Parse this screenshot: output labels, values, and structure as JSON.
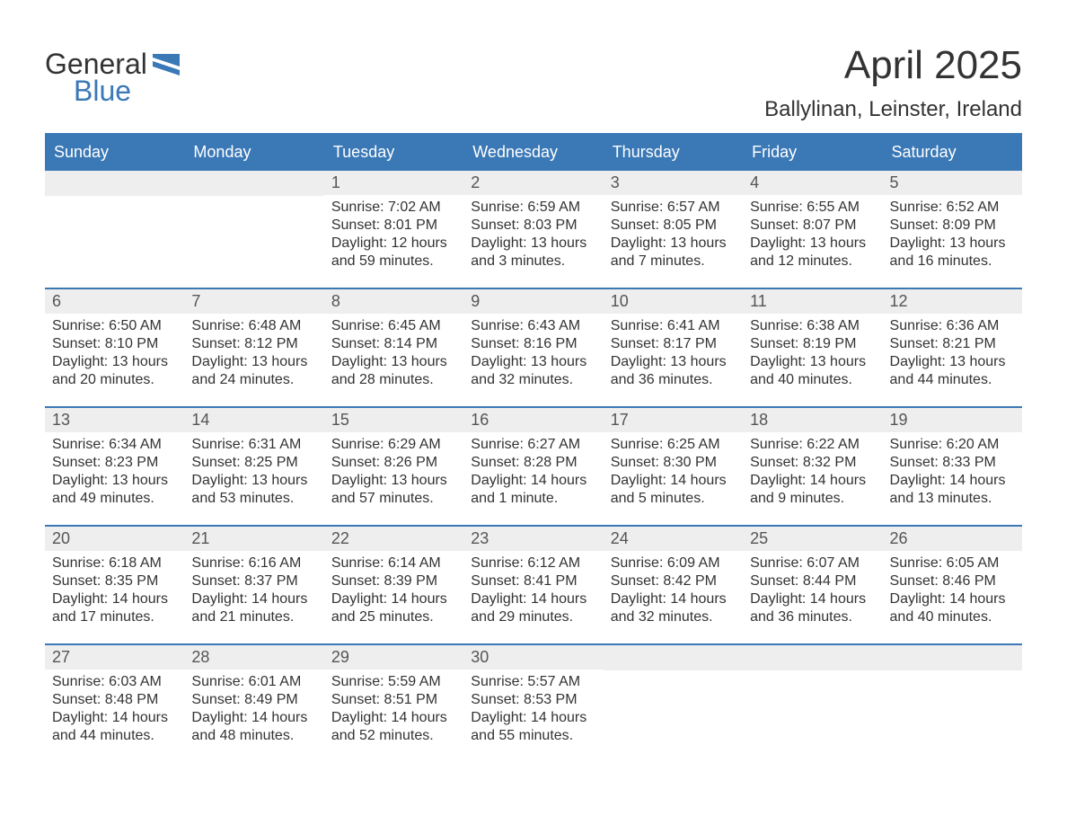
{
  "logo": {
    "word1": "General",
    "word2": "Blue",
    "flag_color": "#3a78b6"
  },
  "title": "April 2025",
  "location": "Ballylinan, Leinster, Ireland",
  "colors": {
    "header_bg": "#3a78b6",
    "header_text": "#ffffff",
    "daynum_bg": "#eeeeee",
    "row_divider": "#3a78b6",
    "body_text": "#333333"
  },
  "weekdays": [
    "Sunday",
    "Monday",
    "Tuesday",
    "Wednesday",
    "Thursday",
    "Friday",
    "Saturday"
  ],
  "weeks": [
    [
      null,
      null,
      {
        "day": 1,
        "sunrise": "7:02 AM",
        "sunset": "8:01 PM",
        "daylight": "12 hours and 59 minutes."
      },
      {
        "day": 2,
        "sunrise": "6:59 AM",
        "sunset": "8:03 PM",
        "daylight": "13 hours and 3 minutes."
      },
      {
        "day": 3,
        "sunrise": "6:57 AM",
        "sunset": "8:05 PM",
        "daylight": "13 hours and 7 minutes."
      },
      {
        "day": 4,
        "sunrise": "6:55 AM",
        "sunset": "8:07 PM",
        "daylight": "13 hours and 12 minutes."
      },
      {
        "day": 5,
        "sunrise": "6:52 AM",
        "sunset": "8:09 PM",
        "daylight": "13 hours and 16 minutes."
      }
    ],
    [
      {
        "day": 6,
        "sunrise": "6:50 AM",
        "sunset": "8:10 PM",
        "daylight": "13 hours and 20 minutes."
      },
      {
        "day": 7,
        "sunrise": "6:48 AM",
        "sunset": "8:12 PM",
        "daylight": "13 hours and 24 minutes."
      },
      {
        "day": 8,
        "sunrise": "6:45 AM",
        "sunset": "8:14 PM",
        "daylight": "13 hours and 28 minutes."
      },
      {
        "day": 9,
        "sunrise": "6:43 AM",
        "sunset": "8:16 PM",
        "daylight": "13 hours and 32 minutes."
      },
      {
        "day": 10,
        "sunrise": "6:41 AM",
        "sunset": "8:17 PM",
        "daylight": "13 hours and 36 minutes."
      },
      {
        "day": 11,
        "sunrise": "6:38 AM",
        "sunset": "8:19 PM",
        "daylight": "13 hours and 40 minutes."
      },
      {
        "day": 12,
        "sunrise": "6:36 AM",
        "sunset": "8:21 PM",
        "daylight": "13 hours and 44 minutes."
      }
    ],
    [
      {
        "day": 13,
        "sunrise": "6:34 AM",
        "sunset": "8:23 PM",
        "daylight": "13 hours and 49 minutes."
      },
      {
        "day": 14,
        "sunrise": "6:31 AM",
        "sunset": "8:25 PM",
        "daylight": "13 hours and 53 minutes."
      },
      {
        "day": 15,
        "sunrise": "6:29 AM",
        "sunset": "8:26 PM",
        "daylight": "13 hours and 57 minutes."
      },
      {
        "day": 16,
        "sunrise": "6:27 AM",
        "sunset": "8:28 PM",
        "daylight": "14 hours and 1 minute."
      },
      {
        "day": 17,
        "sunrise": "6:25 AM",
        "sunset": "8:30 PM",
        "daylight": "14 hours and 5 minutes."
      },
      {
        "day": 18,
        "sunrise": "6:22 AM",
        "sunset": "8:32 PM",
        "daylight": "14 hours and 9 minutes."
      },
      {
        "day": 19,
        "sunrise": "6:20 AM",
        "sunset": "8:33 PM",
        "daylight": "14 hours and 13 minutes."
      }
    ],
    [
      {
        "day": 20,
        "sunrise": "6:18 AM",
        "sunset": "8:35 PM",
        "daylight": "14 hours and 17 minutes."
      },
      {
        "day": 21,
        "sunrise": "6:16 AM",
        "sunset": "8:37 PM",
        "daylight": "14 hours and 21 minutes."
      },
      {
        "day": 22,
        "sunrise": "6:14 AM",
        "sunset": "8:39 PM",
        "daylight": "14 hours and 25 minutes."
      },
      {
        "day": 23,
        "sunrise": "6:12 AM",
        "sunset": "8:41 PM",
        "daylight": "14 hours and 29 minutes."
      },
      {
        "day": 24,
        "sunrise": "6:09 AM",
        "sunset": "8:42 PM",
        "daylight": "14 hours and 32 minutes."
      },
      {
        "day": 25,
        "sunrise": "6:07 AM",
        "sunset": "8:44 PM",
        "daylight": "14 hours and 36 minutes."
      },
      {
        "day": 26,
        "sunrise": "6:05 AM",
        "sunset": "8:46 PM",
        "daylight": "14 hours and 40 minutes."
      }
    ],
    [
      {
        "day": 27,
        "sunrise": "6:03 AM",
        "sunset": "8:48 PM",
        "daylight": "14 hours and 44 minutes."
      },
      {
        "day": 28,
        "sunrise": "6:01 AM",
        "sunset": "8:49 PM",
        "daylight": "14 hours and 48 minutes."
      },
      {
        "day": 29,
        "sunrise": "5:59 AM",
        "sunset": "8:51 PM",
        "daylight": "14 hours and 52 minutes."
      },
      {
        "day": 30,
        "sunrise": "5:57 AM",
        "sunset": "8:53 PM",
        "daylight": "14 hours and 55 minutes."
      },
      null,
      null,
      null
    ]
  ],
  "labels": {
    "sunrise": "Sunrise: ",
    "sunset": "Sunset: ",
    "daylight": "Daylight: "
  }
}
